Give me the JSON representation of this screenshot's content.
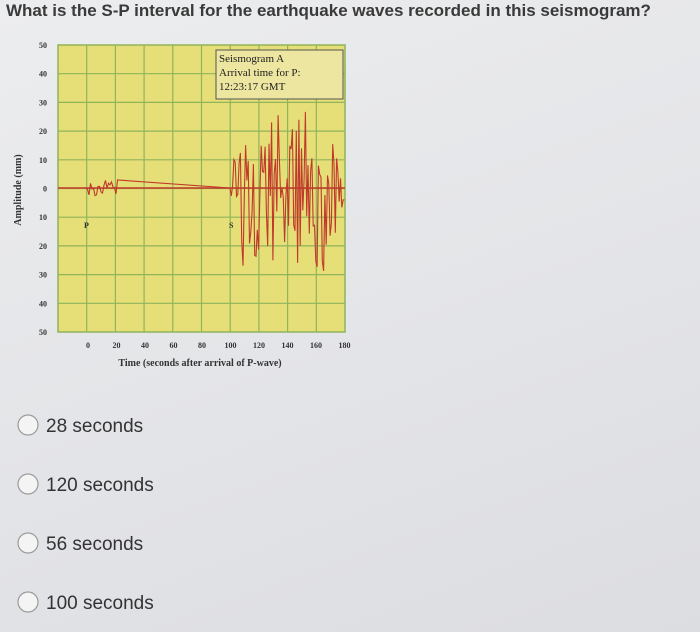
{
  "question": "What is the S-P interval for the earthquake waves recorded in this seismogram?",
  "seismogram": {
    "y_axis_label": "Amplitude (mm)",
    "y_ticks": [
      50,
      40,
      30,
      20,
      10,
      0,
      10,
      20,
      30,
      40,
      50
    ],
    "x_ticks": [
      0,
      20,
      40,
      60,
      80,
      100,
      120,
      140,
      160,
      180
    ],
    "x_axis_label": "Time (seconds after arrival of P-wave)",
    "legend": {
      "title": "Seismogram A",
      "line1": "Arrival time for P:",
      "line2": "12:23:17 GMT"
    },
    "p_label": "P",
    "s_label": "S"
  },
  "options": [
    "28 seconds",
    "120 seconds",
    "56 seconds",
    "100 seconds"
  ]
}
